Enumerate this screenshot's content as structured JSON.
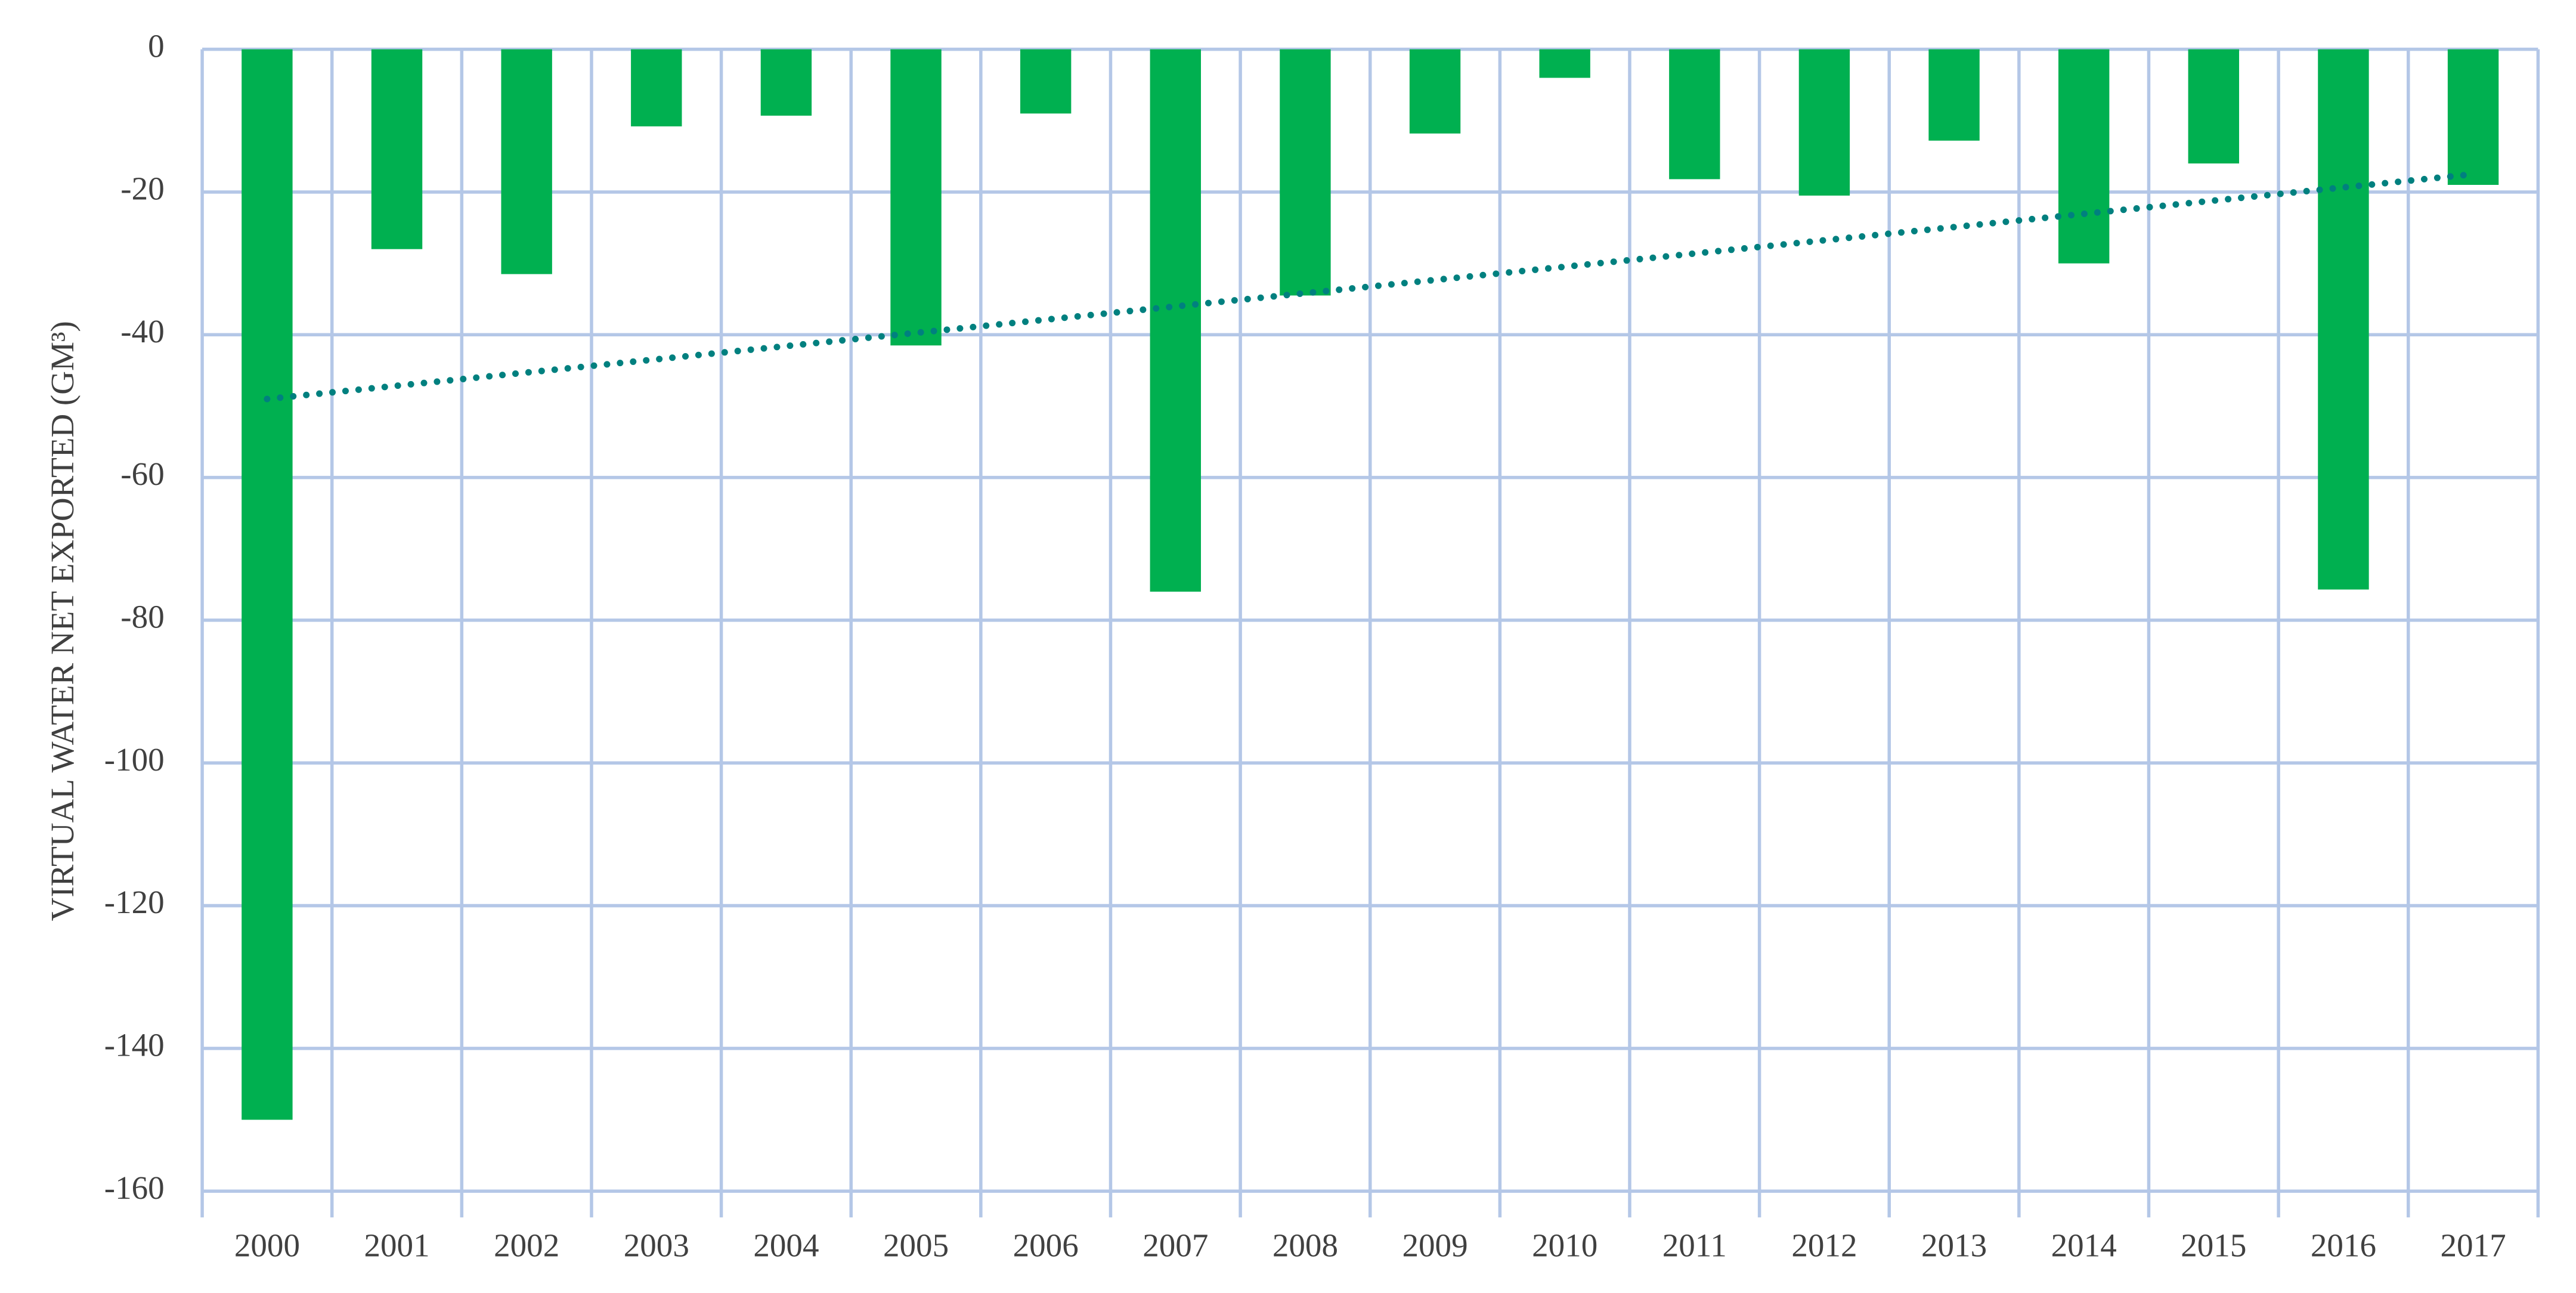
{
  "chart_data": {
    "type": "bar",
    "y_label": "VIRTUAL WATER NET EXPORTED (GM³)",
    "categories": [
      "2000",
      "2001",
      "2002",
      "2003",
      "2004",
      "2005",
      "2006",
      "2007",
      "2008",
      "2009",
      "2010",
      "2011",
      "2012",
      "2013",
      "2014",
      "2015",
      "2016",
      "2017"
    ],
    "values": [
      -150,
      -28,
      -31.5,
      -10.8,
      -9.3,
      -41.5,
      -9,
      -76,
      -34.5,
      -11.8,
      -4,
      -18.2,
      -20.5,
      -12.8,
      -30,
      -16,
      -75.7,
      -19
    ],
    "color": "#00b050",
    "trendline": {
      "color": "#00807f",
      "start": -49,
      "end": -17.5
    },
    "ylim": [
      -160,
      0
    ],
    "yticks": [
      -160,
      -140,
      -120,
      -100,
      -80,
      -60,
      -40,
      -20,
      0
    ],
    "grid": true
  }
}
